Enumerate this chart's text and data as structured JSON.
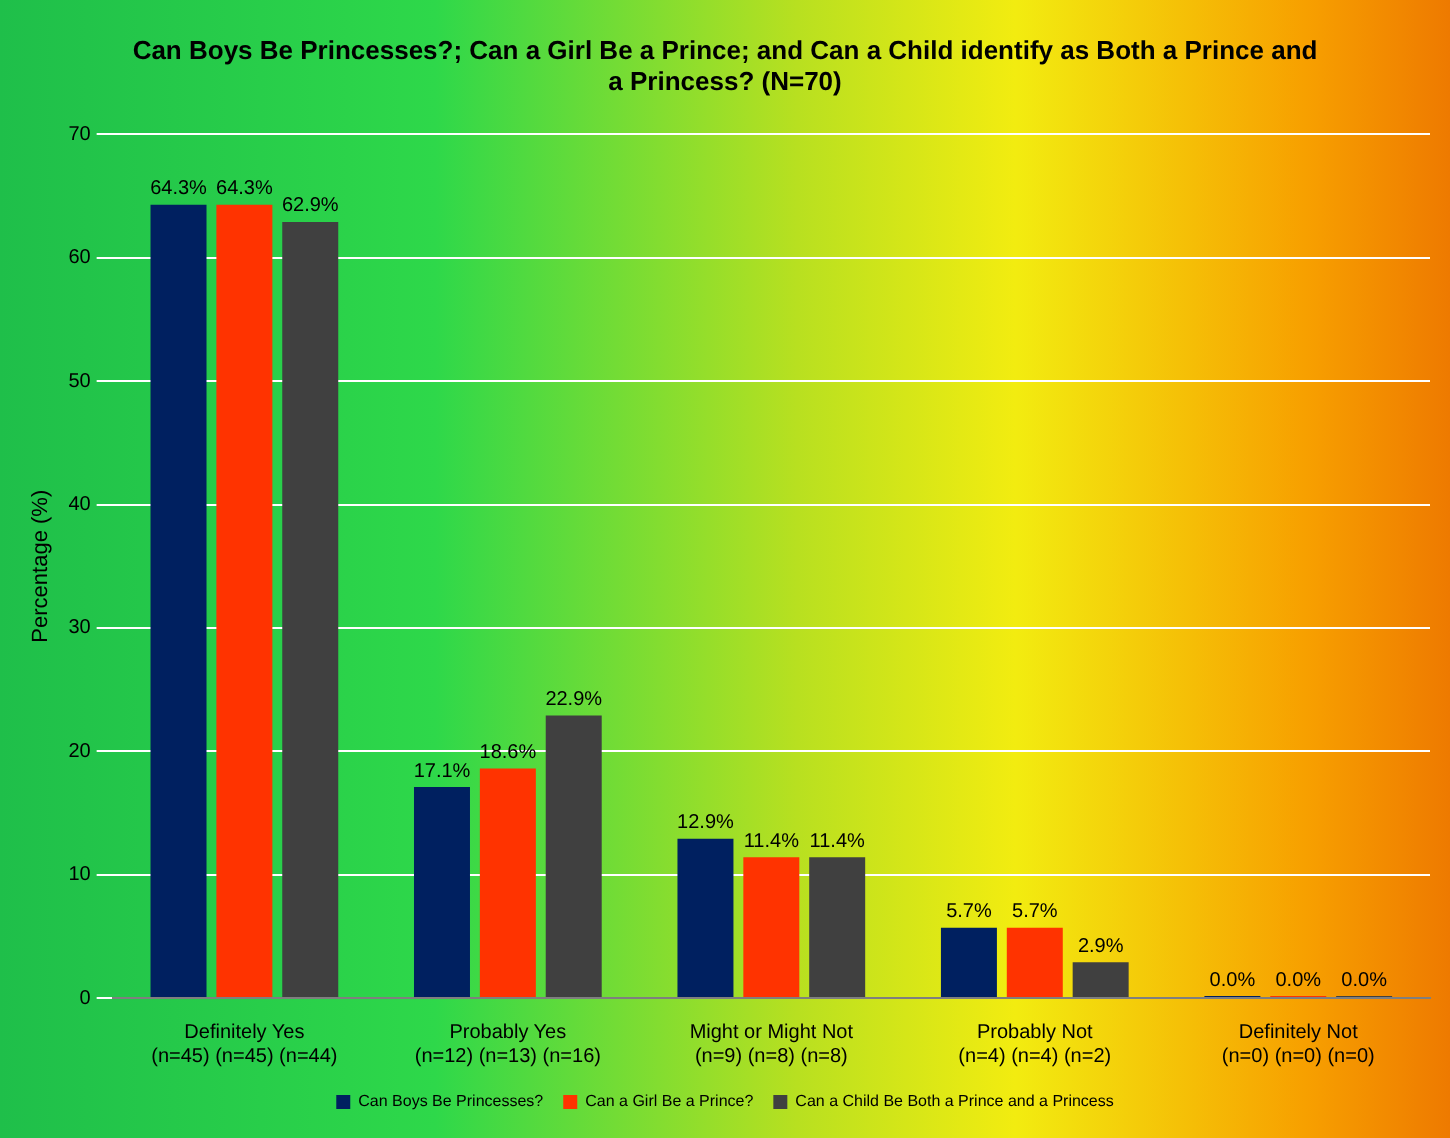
{
  "chart_data": {
    "type": "bar",
    "title": "Can Boys Be Princesses?; Can a Girl Be a Prince; and Can a Child identify as Both a Prince and a Princess? (N=70)",
    "ylabel": "Percentage (%)",
    "categories": [
      "Definitely Yes\n(n=45) (n=45) (n=44)",
      "Probably Yes\n(n=12) (n=13) (n=16)",
      "Might or Might Not\n(n=9) (n=8) (n=8)",
      "Probably Not\n(n=4) (n=4) (n=2)",
      "Definitely Not\n(n=0) (n=0) (n=0)"
    ],
    "series": [
      {
        "name": "Can Boys Be Princesses?",
        "color": "#002060",
        "values": [
          64.3,
          17.1,
          12.9,
          5.7,
          0
        ],
        "value_labels": [
          "64.3%",
          "17.1%",
          "12.9%",
          "5.7%",
          "0.0%"
        ]
      },
      {
        "name": "Can a Girl Be a Prince?",
        "color": "#ff3300",
        "values": [
          64.3,
          18.6,
          11.4,
          5.7,
          0
        ],
        "value_labels": [
          "64.3%",
          "18.6%",
          "11.4%",
          "5.7%",
          "0.0%"
        ]
      },
      {
        "name": "Can a Child Be Both a Prince and a Princess",
        "color": "#404040",
        "values": [
          62.9,
          22.9,
          11.4,
          2.9,
          0
        ],
        "value_labels": [
          "62.9%",
          "22.9%",
          "11.4%",
          "2.9%",
          "0.0%"
        ]
      }
    ],
    "ylim": [
      0,
      70
    ],
    "yticks": [
      0,
      10,
      20,
      30,
      40,
      50,
      60,
      70
    ],
    "grid": "y",
    "legend": "bottom"
  }
}
